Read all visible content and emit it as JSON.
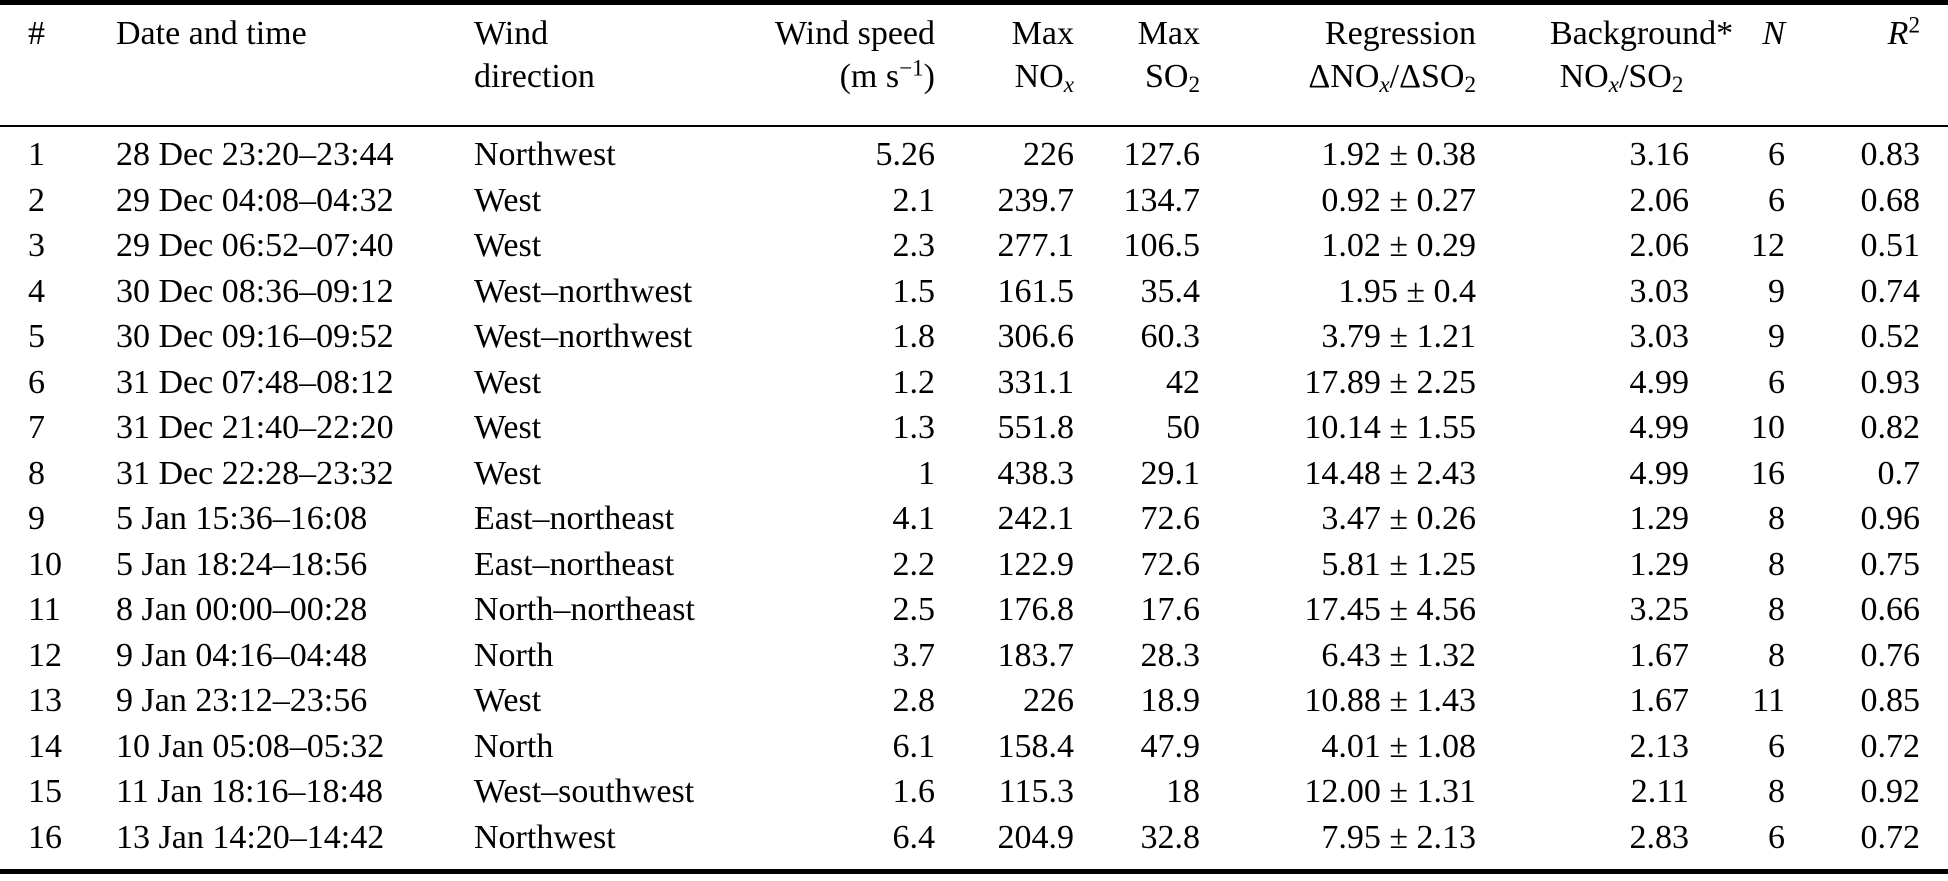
{
  "colors": {
    "text": "#000000",
    "rule": "#000000",
    "background": "#ffffff"
  },
  "table": {
    "header": {
      "num": "#",
      "datetime": "Date and time",
      "wind_direction": {
        "line1": "Wind",
        "line2": "direction"
      },
      "wind_speed": {
        "line1": "Wind speed",
        "unit_pre": "(m s",
        "unit_sup": "−1",
        "unit_post": ")"
      },
      "max_nox": {
        "line1": "Max",
        "base": "NO",
        "sub": "x"
      },
      "max_so2": {
        "line1": "Max",
        "base": "SO",
        "sub": "2"
      },
      "regression": {
        "line1": "Regression",
        "p1": "ΔNO",
        "s1": "x",
        "p2": "/ΔSO",
        "s2": "2"
      },
      "background": {
        "line1": "Background*",
        "p1": "NO",
        "s1": "x",
        "p2": "/SO",
        "s2": "2"
      },
      "n": "N",
      "r2": {
        "base": "R",
        "sup": "2"
      }
    },
    "row_keys": [
      "num",
      "datetime",
      "wind_direction",
      "wind_speed",
      "max_nox",
      "max_so2",
      "regression",
      "background",
      "n",
      "r2"
    ],
    "rows": [
      {
        "num": "1",
        "datetime": "28 Dec 23:20–23:44",
        "wind_direction": "Northwest",
        "wind_speed": "5.26",
        "max_nox": "226",
        "max_so2": "127.6",
        "regression": "1.92 ± 0.38",
        "background": "3.16",
        "n": "6",
        "r2": "0.83"
      },
      {
        "num": "2",
        "datetime": "29 Dec 04:08–04:32",
        "wind_direction": "West",
        "wind_speed": "2.1",
        "max_nox": "239.7",
        "max_so2": "134.7",
        "regression": "0.92 ± 0.27",
        "background": "2.06",
        "n": "6",
        "r2": "0.68"
      },
      {
        "num": "3",
        "datetime": "29 Dec 06:52–07:40",
        "wind_direction": "West",
        "wind_speed": "2.3",
        "max_nox": "277.1",
        "max_so2": "106.5",
        "regression": "1.02 ± 0.29",
        "background": "2.06",
        "n": "12",
        "r2": "0.51"
      },
      {
        "num": "4",
        "datetime": "30 Dec 08:36–09:12",
        "wind_direction": "West–northwest",
        "wind_speed": "1.5",
        "max_nox": "161.5",
        "max_so2": "35.4",
        "regression": "1.95 ± 0.4",
        "background": "3.03",
        "n": "9",
        "r2": "0.74"
      },
      {
        "num": "5",
        "datetime": "30 Dec 09:16–09:52",
        "wind_direction": "West–northwest",
        "wind_speed": "1.8",
        "max_nox": "306.6",
        "max_so2": "60.3",
        "regression": "3.79 ± 1.21",
        "background": "3.03",
        "n": "9",
        "r2": "0.52"
      },
      {
        "num": "6",
        "datetime": "31 Dec 07:48–08:12",
        "wind_direction": "West",
        "wind_speed": "1.2",
        "max_nox": "331.1",
        "max_so2": "42",
        "regression": "17.89 ± 2.25",
        "background": "4.99",
        "n": "6",
        "r2": "0.93"
      },
      {
        "num": "7",
        "datetime": "31 Dec 21:40–22:20",
        "wind_direction": "West",
        "wind_speed": "1.3",
        "max_nox": "551.8",
        "max_so2": "50",
        "regression": "10.14 ± 1.55",
        "background": "4.99",
        "n": "10",
        "r2": "0.82"
      },
      {
        "num": "8",
        "datetime": "31 Dec 22:28–23:32",
        "wind_direction": "West",
        "wind_speed": "1",
        "max_nox": "438.3",
        "max_so2": "29.1",
        "regression": "14.48 ± 2.43",
        "background": "4.99",
        "n": "16",
        "r2": "0.7"
      },
      {
        "num": "9",
        "datetime": "5 Jan 15:36–16:08",
        "wind_direction": "East–northeast",
        "wind_speed": "4.1",
        "max_nox": "242.1",
        "max_so2": "72.6",
        "regression": "3.47 ± 0.26",
        "background": "1.29",
        "n": "8",
        "r2": "0.96"
      },
      {
        "num": "10",
        "datetime": "5 Jan 18:24–18:56",
        "wind_direction": "East–northeast",
        "wind_speed": "2.2",
        "max_nox": "122.9",
        "max_so2": "72.6",
        "regression": "5.81 ± 1.25",
        "background": "1.29",
        "n": "8",
        "r2": "0.75"
      },
      {
        "num": "11",
        "datetime": "8 Jan 00:00–00:28",
        "wind_direction": "North–northeast",
        "wind_speed": "2.5",
        "max_nox": "176.8",
        "max_so2": "17.6",
        "regression": "17.45 ± 4.56",
        "background": "3.25",
        "n": "8",
        "r2": "0.66"
      },
      {
        "num": "12",
        "datetime": "9 Jan 04:16–04:48",
        "wind_direction": "North",
        "wind_speed": "3.7",
        "max_nox": "183.7",
        "max_so2": "28.3",
        "regression": "6.43 ± 1.32",
        "background": "1.67",
        "n": "8",
        "r2": "0.76"
      },
      {
        "num": "13",
        "datetime": "9 Jan 23:12–23:56",
        "wind_direction": "West",
        "wind_speed": "2.8",
        "max_nox": "226",
        "max_so2": "18.9",
        "regression": "10.88 ± 1.43",
        "background": "1.67",
        "n": "11",
        "r2": "0.85"
      },
      {
        "num": "14",
        "datetime": "10 Jan 05:08–05:32",
        "wind_direction": "North",
        "wind_speed": "6.1",
        "max_nox": "158.4",
        "max_so2": "47.9",
        "regression": "4.01 ± 1.08",
        "background": "2.13",
        "n": "6",
        "r2": "0.72"
      },
      {
        "num": "15",
        "datetime": "11 Jan 18:16–18:48",
        "wind_direction": "West–southwest",
        "wind_speed": "1.6",
        "max_nox": "115.3",
        "max_so2": "18",
        "regression": "12.00 ± 1.31",
        "background": "2.11",
        "n": "8",
        "r2": "0.92"
      },
      {
        "num": "16",
        "datetime": "13 Jan 14:20–14:42",
        "wind_direction": "Northwest",
        "wind_speed": "6.4",
        "max_nox": "204.9",
        "max_so2": "32.8",
        "regression": "7.95 ± 2.13",
        "background": "2.83",
        "n": "6",
        "r2": "0.72"
      }
    ]
  }
}
